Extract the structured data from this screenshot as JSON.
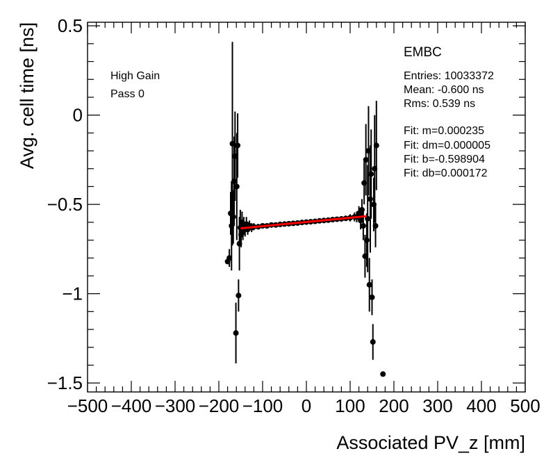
{
  "chart_data": {
    "type": "scatter",
    "title": "",
    "xlabel": "Associated PV_z [mm]",
    "ylabel": "Avg. cell time [ns]",
    "xlim": [
      -500,
      500
    ],
    "ylim": [
      -1.55,
      0.52
    ],
    "x_ticks": [
      -500,
      -400,
      -300,
      -200,
      -100,
      0,
      100,
      200,
      300,
      400,
      500
    ],
    "x_tick_labels": [
      "−500",
      "−400",
      "−300",
      "−200",
      "−100",
      "0",
      "100",
      "200",
      "300",
      "400",
      "500"
    ],
    "y_ticks": [
      0.5,
      0,
      -0.5,
      -1,
      -1.5
    ],
    "y_tick_labels": [
      "0.5",
      "0",
      "−0.5",
      "−1",
      "−1.5"
    ],
    "marker_color": "#000000",
    "fit_color": "#ff0000",
    "fit_line": {
      "x": [
        -150,
        138
      ],
      "y": [
        -0.634,
        -0.566
      ]
    },
    "labels": {
      "gain": "High Gain",
      "pass": "Pass 0"
    },
    "stats": {
      "title": "EMBC",
      "lines": [
        "Entries: 10033372",
        "Mean: -0.600 ns",
        "Rms: 0.539 ns",
        "",
        "Fit: m=0.000235",
        "Fit: dm=0.000005",
        "Fit: b=-0.598904",
        "Fit: db=0.000172"
      ]
    },
    "points": [
      {
        "x": -180,
        "y": -0.82,
        "e": 0.0
      },
      {
        "x": -176,
        "y": -0.8,
        "e": 0.05
      },
      {
        "x": -173,
        "y": -0.55,
        "e": 0.12
      },
      {
        "x": -171,
        "y": -0.62,
        "e": 0.25
      },
      {
        "x": -169,
        "y": -0.16,
        "e": 0.57
      },
      {
        "x": -167,
        "y": -0.57,
        "e": 0.15
      },
      {
        "x": -165,
        "y": -0.37,
        "e": 0.25
      },
      {
        "x": -163,
        "y": -0.23,
        "e": 0.25
      },
      {
        "x": -161,
        "y": -1.22,
        "e": 0.17
      },
      {
        "x": -159,
        "y": -0.4,
        "e": 0.3
      },
      {
        "x": -157,
        "y": -0.17,
        "e": 0.18
      },
      {
        "x": -155,
        "y": -1.01,
        "e": 0.09
      },
      {
        "x": -153,
        "y": -0.72,
        "e": 0.15
      },
      {
        "x": -151,
        "y": -0.63,
        "e": 0.1
      },
      {
        "x": -149,
        "y": -0.67,
        "e": 0.07
      },
      {
        "x": -147,
        "y": -0.6,
        "e": 0.06
      },
      {
        "x": -145,
        "y": -0.65,
        "e": 0.05
      },
      {
        "x": -143,
        "y": -0.62,
        "e": 0.05
      },
      {
        "x": -140,
        "y": -0.64,
        "e": 0.04
      },
      {
        "x": -137,
        "y": -0.61,
        "e": 0.04
      },
      {
        "x": -134,
        "y": -0.64,
        "e": 0.03
      },
      {
        "x": -130,
        "y": -0.62,
        "e": 0.03
      },
      {
        "x": -125,
        "y": -0.63,
        "e": 0.025
      },
      {
        "x": -120,
        "y": -0.625,
        "e": 0.02
      },
      {
        "x": -110,
        "y": -0.625,
        "e": 0.015
      },
      {
        "x": -100,
        "y": -0.62,
        "e": 0.012
      },
      {
        "x": -90,
        "y": -0.62,
        "e": 0.01
      },
      {
        "x": -80,
        "y": -0.615,
        "e": 0.01
      },
      {
        "x": -70,
        "y": -0.615,
        "e": 0.01
      },
      {
        "x": -60,
        "y": -0.612,
        "e": 0.008
      },
      {
        "x": -50,
        "y": -0.61,
        "e": 0.008
      },
      {
        "x": -40,
        "y": -0.608,
        "e": 0.008
      },
      {
        "x": -30,
        "y": -0.606,
        "e": 0.008
      },
      {
        "x": -20,
        "y": -0.604,
        "e": 0.008
      },
      {
        "x": -10,
        "y": -0.601,
        "e": 0.008
      },
      {
        "x": 0,
        "y": -0.599,
        "e": 0.008
      },
      {
        "x": 10,
        "y": -0.597,
        "e": 0.008
      },
      {
        "x": 20,
        "y": -0.595,
        "e": 0.008
      },
      {
        "x": 30,
        "y": -0.592,
        "e": 0.008
      },
      {
        "x": 40,
        "y": -0.59,
        "e": 0.008
      },
      {
        "x": 50,
        "y": -0.588,
        "e": 0.01
      },
      {
        "x": 60,
        "y": -0.585,
        "e": 0.01
      },
      {
        "x": 70,
        "y": -0.583,
        "e": 0.01
      },
      {
        "x": 80,
        "y": -0.581,
        "e": 0.012
      },
      {
        "x": 90,
        "y": -0.578,
        "e": 0.015
      },
      {
        "x": 100,
        "y": -0.575,
        "e": 0.02
      },
      {
        "x": 110,
        "y": -0.57,
        "e": 0.025
      },
      {
        "x": 115,
        "y": -0.57,
        "e": 0.03
      },
      {
        "x": 120,
        "y": -0.55,
        "e": 0.04
      },
      {
        "x": 124,
        "y": -0.59,
        "e": 0.05
      },
      {
        "x": 127,
        "y": -0.53,
        "e": 0.06
      },
      {
        "x": 130,
        "y": -0.62,
        "e": 0.08
      },
      {
        "x": 132,
        "y": -0.38,
        "e": 0.12
      },
      {
        "x": 134,
        "y": -0.79,
        "e": 0.12
      },
      {
        "x": 136,
        "y": -0.25,
        "e": 0.2
      },
      {
        "x": 138,
        "y": -0.7,
        "e": 0.15
      },
      {
        "x": 140,
        "y": -0.58,
        "e": 0.3
      },
      {
        "x": 142,
        "y": -0.2,
        "e": 0.25
      },
      {
        "x": 144,
        "y": -0.95,
        "e": 0.15
      },
      {
        "x": 146,
        "y": -0.47,
        "e": 0.3
      },
      {
        "x": 148,
        "y": -0.33,
        "e": 0.25
      },
      {
        "x": 150,
        "y": -1.02,
        "e": 0.1
      },
      {
        "x": 152,
        "y": -1.27,
        "e": 0.1
      },
      {
        "x": 154,
        "y": -0.5,
        "e": 0.15
      },
      {
        "x": 156,
        "y": -0.3,
        "e": 0.3
      },
      {
        "x": 158,
        "y": -0.62,
        "e": 0.12
      },
      {
        "x": 160,
        "y": -0.17,
        "e": 0.25
      },
      {
        "x": 175,
        "y": -1.45,
        "e": 0.0
      }
    ]
  }
}
